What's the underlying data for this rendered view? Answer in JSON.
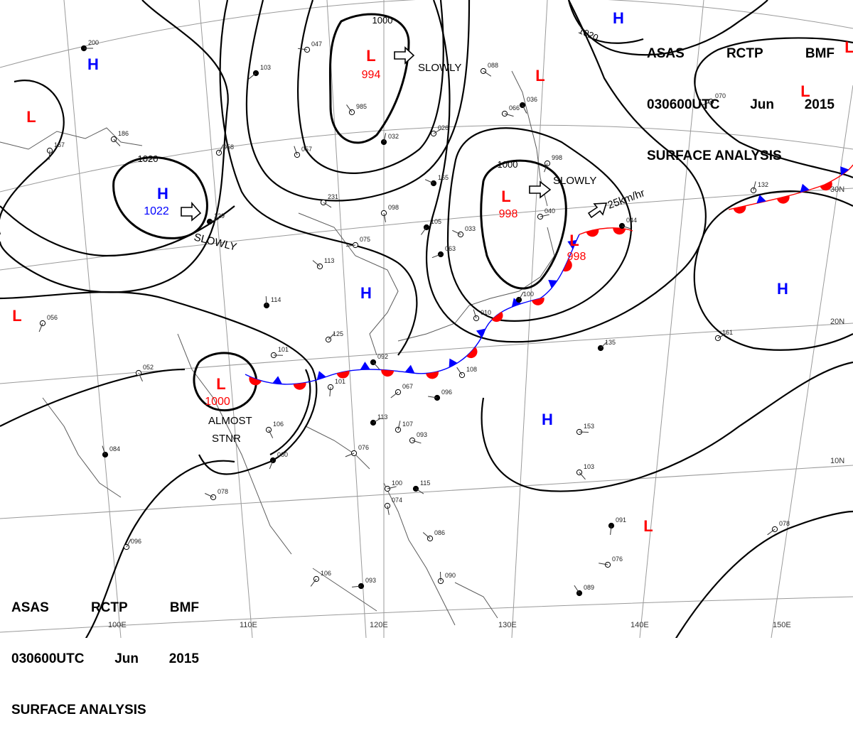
{
  "header_top_right": {
    "line1": [
      "ASAS",
      "RCTP",
      "BMF"
    ],
    "line2": [
      "030600UTC",
      "Jun",
      "2015"
    ],
    "line3": "SURFACE ANALYSIS"
  },
  "header_bottom_left": {
    "line1": [
      "ASAS",
      "RCTP",
      "BMF"
    ],
    "line2": [
      "030600UTC",
      "Jun",
      "2015"
    ],
    "line3": "SURFACE ANALYSIS"
  },
  "colors": {
    "low": "#ff0000",
    "high": "#0000ff",
    "isobar": "#000000",
    "warm_front": "#ff0000",
    "cold_front": "#0000ff",
    "grid": "#9a9a9a",
    "coast": "#5a5a5a"
  },
  "pressure_systems": [
    {
      "type": "L",
      "label": "L",
      "pressure": "994"
    },
    {
      "type": "L",
      "label": "L",
      "pressure": "998"
    },
    {
      "type": "L",
      "label": "L",
      "pressure": "998"
    },
    {
      "type": "L",
      "label": "L",
      "pressure": "1000"
    },
    {
      "type": "H",
      "label": "H",
      "pressure": "1022"
    },
    {
      "type": "L",
      "label": "L",
      "pressure": ""
    },
    {
      "type": "L",
      "label": "L",
      "pressure": ""
    },
    {
      "type": "L",
      "label": "L",
      "pressure": ""
    },
    {
      "type": "L",
      "label": "L",
      "pressure": ""
    },
    {
      "type": "L",
      "label": "L",
      "pressure": ""
    },
    {
      "type": "L",
      "label": "L",
      "pressure": ""
    },
    {
      "type": "H",
      "label": "H",
      "pressure": ""
    },
    {
      "type": "H",
      "label": "H",
      "pressure": ""
    },
    {
      "type": "H",
      "label": "H",
      "pressure": ""
    },
    {
      "type": "H",
      "label": "H",
      "pressure": ""
    },
    {
      "type": "H",
      "label": "H",
      "pressure": ""
    }
  ],
  "isobar_labels": [
    "1020",
    "1000",
    "1000",
    "1020"
  ],
  "movement_labels": [
    "SLOWLY",
    "SLOWLY",
    "SLOWLY",
    "25km/hr",
    "ALMOST",
    "STNR"
  ],
  "grid_labels": {
    "longitude": [
      "110E",
      "120E",
      "130E",
      "140E",
      "150E",
      "100E"
    ],
    "latitude": [
      "30N",
      "20N",
      "10N"
    ]
  },
  "station_samples": [
    "200",
    "186",
    "167",
    "103",
    "047",
    "985",
    "032",
    "026",
    "066",
    "036",
    "998",
    "070",
    "165",
    "057",
    "058",
    "129",
    "231",
    "098",
    "105",
    "075",
    "113",
    "114",
    "125",
    "101",
    "092",
    "101",
    "067",
    "096",
    "108",
    "107",
    "113",
    "093",
    "106",
    "060",
    "076",
    "078",
    "084",
    "096",
    "100",
    "115",
    "074",
    "106",
    "093",
    "086",
    "090",
    "135",
    "153",
    "103",
    "091",
    "078",
    "076",
    "089",
    "132",
    "161",
    "044",
    "052",
    "056",
    "063",
    "033",
    "010",
    "100",
    "040",
    "088"
  ]
}
